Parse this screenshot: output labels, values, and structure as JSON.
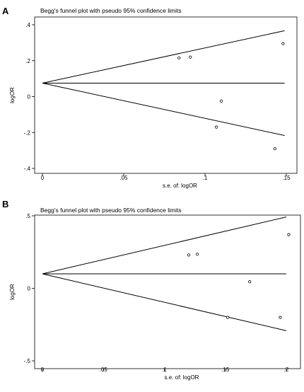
{
  "chart_data": [
    {
      "panel": "A",
      "type": "scatter",
      "title": "Begg's funnel plot with pseudo 95% confidence limits",
      "xlabel": "s.e. of: logOR",
      "ylabel": "logOR",
      "xlim": [
        0,
        0.15
      ],
      "ylim": [
        -0.4,
        0.4
      ],
      "xticks": [
        0,
        0.05,
        0.1,
        0.15
      ],
      "xtick_labels": [
        "0",
        ".05",
        ".1",
        ".15"
      ],
      "yticks": [
        0.4,
        0.2,
        0,
        -0.2,
        -0.4
      ],
      "ytick_labels": [
        ".4",
        ".2",
        "0",
        "-.2",
        "-.4"
      ],
      "pooled_logOR": 0.075,
      "points": [
        {
          "x": 0.084,
          "y": 0.215
        },
        {
          "x": 0.091,
          "y": 0.22
        },
        {
          "x": 0.148,
          "y": 0.295
        },
        {
          "x": 0.11,
          "y": -0.025
        },
        {
          "x": 0.107,
          "y": -0.17
        },
        {
          "x": 0.143,
          "y": -0.29
        }
      ]
    },
    {
      "panel": "B",
      "type": "scatter",
      "title": "Begg's funnel plot with pseudo 95% confidence limits",
      "xlabel": "s.e. of: logOR",
      "ylabel": "logOR",
      "xlim": [
        0,
        0.2
      ],
      "ylim": [
        -0.5,
        0.5
      ],
      "xticks": [
        0,
        0.05,
        0.1,
        0.15,
        0.2
      ],
      "xtick_labels": [
        "0",
        ".05",
        ".1",
        ".15",
        ".2"
      ],
      "yticks": [
        0.5,
        0,
        -0.5
      ],
      "ytick_labels": [
        ".5",
        "0",
        "-.5"
      ],
      "pooled_logOR": 0.1,
      "points": [
        {
          "x": 0.12,
          "y": 0.23
        },
        {
          "x": 0.127,
          "y": 0.235
        },
        {
          "x": 0.202,
          "y": 0.37
        },
        {
          "x": 0.17,
          "y": 0.045
        },
        {
          "x": 0.152,
          "y": -0.2
        },
        {
          "x": 0.195,
          "y": -0.2
        }
      ]
    }
  ]
}
